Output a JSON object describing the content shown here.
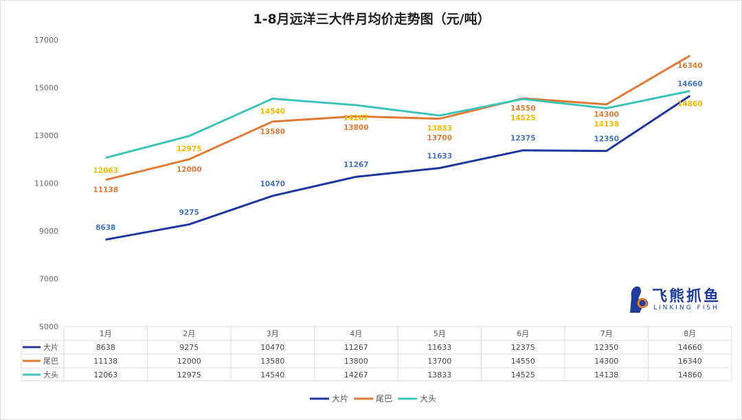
{
  "chart_data": {
    "type": "line",
    "title": "1-8月远洋三大件月均价走势图（元/吨）",
    "categories": [
      "1月",
      "2月",
      "3月",
      "4月",
      "5月",
      "6月",
      "7月",
      "8月"
    ],
    "ylim": [
      5000,
      17000
    ],
    "yticks": [
      5000,
      7000,
      9000,
      11000,
      13000,
      15000,
      17000
    ],
    "grid": false,
    "legend": "bottom",
    "data_table": true,
    "series": [
      {
        "name": "大片",
        "color": "#1f35a0",
        "label_color": "#4472c4",
        "values": [
          8638,
          9275,
          10470,
          11267,
          11633,
          12375,
          12350,
          14660
        ]
      },
      {
        "name": "尾巴",
        "color": "#e07a35",
        "label_color": "#e07a35",
        "values": [
          11138,
          12000,
          13580,
          13800,
          13700,
          14550,
          14300,
          16340
        ]
      },
      {
        "name": "大头",
        "color": "#3cc4b8",
        "label_color": "#f2b800",
        "values": [
          12063,
          12975,
          14540,
          14267,
          13833,
          14525,
          14138,
          14860
        ]
      }
    ]
  },
  "logo": {
    "name": "飞熊抓鱼",
    "sub": "LINKING FISH"
  }
}
